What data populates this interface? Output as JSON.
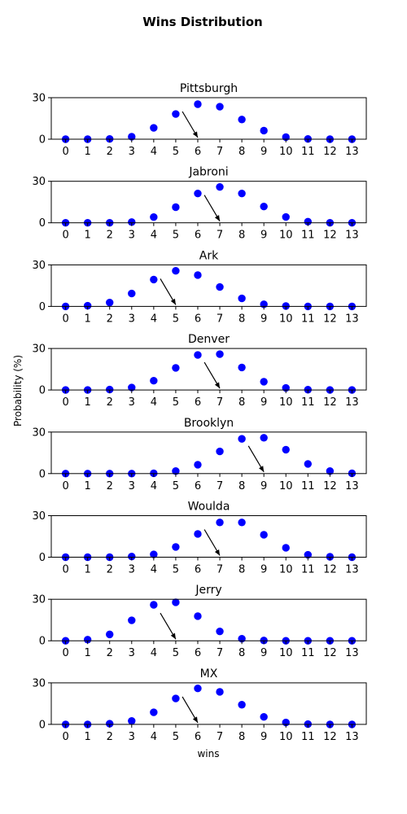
{
  "chart_data": {
    "type": "scatter",
    "title": "Wins Distribution",
    "xlabel": "wins",
    "ylabel": "Probability (%)",
    "categories": [
      "0",
      "1",
      "2",
      "3",
      "4",
      "5",
      "6",
      "7",
      "8",
      "9",
      "10",
      "11",
      "12",
      "13"
    ],
    "ylim": [
      0,
      30
    ],
    "yticks": [
      "0",
      "30"
    ],
    "marker_color": "#0000ff",
    "grid": false,
    "subplots": [
      {
        "name": "Pittsburgh",
        "values": [
          0,
          0,
          0.2,
          1.8,
          8.2,
          18.2,
          25.3,
          23.5,
          14.2,
          6.2,
          1.5,
          0.2,
          0,
          0
        ],
        "arrow_at": 6
      },
      {
        "name": "Jabroni",
        "values": [
          0,
          0,
          0,
          0.5,
          4.1,
          11.3,
          21.2,
          25.9,
          21.2,
          11.8,
          4.2,
          0.8,
          0,
          0
        ],
        "arrow_at": 7
      },
      {
        "name": "Ark",
        "values": [
          0,
          0.5,
          2.8,
          9.3,
          19.4,
          25.7,
          22.6,
          14.0,
          5.8,
          1.5,
          0.3,
          0,
          0,
          0
        ],
        "arrow_at": 5
      },
      {
        "name": "Denver",
        "values": [
          0,
          0,
          0.3,
          1.8,
          6.7,
          16.0,
          25.3,
          25.9,
          16.3,
          6.0,
          1.5,
          0.2,
          0,
          0
        ],
        "arrow_at": 7
      },
      {
        "name": "Brooklyn",
        "values": [
          0,
          0,
          0,
          0,
          0.2,
          1.8,
          6.4,
          16.0,
          25.1,
          25.9,
          17.3,
          7.0,
          1.8,
          0.2
        ],
        "arrow_at": 9
      },
      {
        "name": "Woulda",
        "values": [
          0,
          0,
          0,
          0.5,
          2.0,
          7.4,
          16.8,
          25.1,
          25.1,
          16.2,
          6.8,
          1.7,
          0.3,
          0
        ],
        "arrow_at": 7
      },
      {
        "name": "Jerry",
        "values": [
          0,
          0.8,
          4.6,
          14.8,
          26.0,
          27.8,
          17.8,
          6.8,
          1.5,
          0.2,
          0,
          0,
          0,
          0
        ],
        "arrow_at": 5
      },
      {
        "name": "MX",
        "values": [
          0,
          0,
          0.5,
          2.5,
          8.7,
          18.7,
          26.0,
          23.5,
          14.2,
          5.4,
          1.4,
          0.2,
          0,
          0
        ],
        "arrow_at": 6
      }
    ]
  }
}
